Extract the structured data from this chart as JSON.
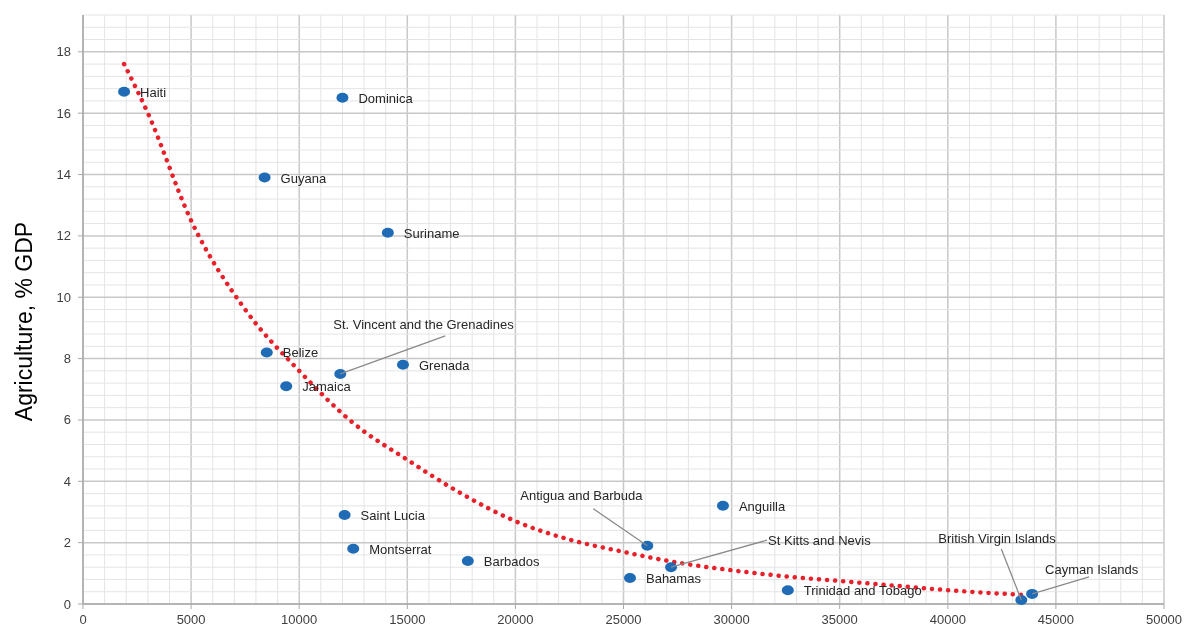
{
  "chart_data": {
    "type": "scatter",
    "ylabel": "Agriculture, % GDP",
    "xlim": [
      0,
      50000
    ],
    "ylim": [
      0,
      19.2
    ],
    "xticks": [
      0,
      {
        "value": 1000,
        "label": null
      },
      {
        "value": 2000,
        "label": null
      },
      {
        "value": 3000,
        "label": null
      },
      {
        "value": 4000,
        "label": null
      },
      5000,
      {
        "value": 6000,
        "label": null
      },
      {
        "value": 7000,
        "label": null
      },
      {
        "value": 8000,
        "label": null
      },
      {
        "value": 9000,
        "label": null
      },
      10000,
      {
        "value": 11000,
        "label": null
      },
      {
        "value": 12000,
        "label": null
      },
      {
        "value": 13000,
        "label": null
      },
      {
        "value": 14000,
        "label": null
      },
      15000,
      {
        "value": 16000,
        "label": null
      },
      {
        "value": 17000,
        "label": null
      },
      {
        "value": 18000,
        "label": null
      },
      {
        "value": 19000,
        "label": null
      },
      20000,
      {
        "value": 21000,
        "label": null
      },
      {
        "value": 22000,
        "label": null
      },
      {
        "value": 23000,
        "label": null
      },
      {
        "value": 24000,
        "label": null
      },
      25000,
      {
        "value": 26000,
        "label": null
      },
      {
        "value": 27000,
        "label": null
      },
      {
        "value": 28000,
        "label": null
      },
      {
        "value": 29000,
        "label": null
      },
      30000,
      {
        "value": 31000,
        "label": null
      },
      {
        "value": 32000,
        "label": null
      },
      {
        "value": 33000,
        "label": null
      },
      {
        "value": 34000,
        "label": null
      },
      35000,
      {
        "value": 36000,
        "label": null
      },
      {
        "value": 37000,
        "label": null
      },
      {
        "value": 38000,
        "label": null
      },
      {
        "value": 39000,
        "label": null
      },
      40000,
      {
        "value": 41000,
        "label": null
      },
      {
        "value": 42000,
        "label": null
      },
      {
        "value": 43000,
        "label": null
      },
      {
        "value": 44000,
        "label": null
      },
      45000,
      {
        "value": 46000,
        "label": null
      },
      {
        "value": 47000,
        "label": null
      },
      {
        "value": 48000,
        "label": null
      },
      {
        "value": 49000,
        "label": null
      },
      50000
    ],
    "yticks": [
      0,
      {
        "value": 0.4,
        "label": null
      },
      {
        "value": 0.8,
        "label": null
      },
      {
        "value": 1.2,
        "label": null
      },
      {
        "value": 1.6,
        "label": null
      },
      2,
      {
        "value": 2.4,
        "label": null
      },
      {
        "value": 2.8,
        "label": null
      },
      {
        "value": 3.2,
        "label": null
      },
      {
        "value": 3.6,
        "label": null
      },
      4,
      {
        "value": 4.4,
        "label": null
      },
      {
        "value": 4.8,
        "label": null
      },
      {
        "value": 5.2,
        "label": null
      },
      {
        "value": 5.6,
        "label": null
      },
      6,
      {
        "value": 6.4,
        "label": null
      },
      {
        "value": 6.8,
        "label": null
      },
      {
        "value": 7.2,
        "label": null
      },
      {
        "value": 7.6,
        "label": null
      },
      8,
      {
        "value": 8.4,
        "label": null
      },
      {
        "value": 8.8,
        "label": null
      },
      {
        "value": 9.2,
        "label": null
      },
      {
        "value": 9.6,
        "label": null
      },
      10,
      {
        "value": 10.4,
        "label": null
      },
      {
        "value": 10.8,
        "label": null
      },
      {
        "value": 11.2,
        "label": null
      },
      {
        "value": 11.6,
        "label": null
      },
      12,
      {
        "value": 12.4,
        "label": null
      },
      {
        "value": 12.8,
        "label": null
      },
      {
        "value": 13.2,
        "label": null
      },
      {
        "value": 13.6,
        "label": null
      },
      14,
      {
        "value": 14.4,
        "label": null
      },
      {
        "value": 14.8,
        "label": null
      },
      {
        "value": 15.2,
        "label": null
      },
      {
        "value": 15.6,
        "label": null
      },
      16,
      {
        "value": 16.4,
        "label": null
      },
      {
        "value": 16.8,
        "label": null
      },
      {
        "value": 17.2,
        "label": null
      },
      {
        "value": 17.6,
        "label": null
      },
      18,
      {
        "value": 18.4,
        "label": null
      },
      {
        "value": 18.8,
        "label": null
      },
      {
        "value": 19.2,
        "label": null
      }
    ],
    "grid": true,
    "series": [
      {
        "type": "scatter",
        "color": "#1f6bb5",
        "marker": "circle",
        "x": [
          1900,
          12000,
          8400,
          14100,
          8500,
          11900,
          14800,
          9400,
          12100,
          12500,
          17800,
          26100,
          29600,
          27200,
          25300,
          32600,
          43400,
          43900
        ],
        "values": [
          16.7,
          16.5,
          13.9,
          12.1,
          8.2,
          7.5,
          7.8,
          7.1,
          2.9,
          1.8,
          1.4,
          1.9,
          3.2,
          1.2,
          0.85,
          0.45,
          0.13,
          0.33
        ]
      },
      {
        "type": "line",
        "color": "#e8202a",
        "line_style": "dotted",
        "x": [
          1900,
          3000,
          5000,
          7500,
          10000,
          12500,
          15000,
          17500,
          20000,
          22500,
          25000,
          27500,
          30000,
          32500,
          35000,
          37500,
          40000,
          43400
        ],
        "values": [
          17.6,
          16.0,
          12.5,
          9.6,
          7.6,
          5.9,
          4.7,
          3.6,
          2.7,
          2.1,
          1.7,
          1.35,
          1.1,
          0.9,
          0.75,
          0.6,
          0.45,
          0.3
        ]
      }
    ],
    "annotations": [
      {
        "text": "Haiti",
        "x": 1900,
        "y": 16.7
      },
      {
        "text": "Dominica",
        "x": 12000,
        "y": 16.5
      },
      {
        "text": "Guyana",
        "x": 8400,
        "y": 13.9
      },
      {
        "text": "Suriname",
        "x": 14100,
        "y": 12.1
      },
      {
        "text": "Belize",
        "x": 8500,
        "y": 8.2
      },
      {
        "text": "St. Vincent and the Grenadines",
        "x": 11900,
        "y": 7.5
      },
      {
        "text": "Grenada",
        "x": 14800,
        "y": 7.8
      },
      {
        "text": "Jamaica",
        "x": 9400,
        "y": 7.1
      },
      {
        "text": "Saint Lucia",
        "x": 12100,
        "y": 2.9
      },
      {
        "text": "Montserrat",
        "x": 12500,
        "y": 1.8
      },
      {
        "text": "Barbados",
        "x": 17800,
        "y": 1.4
      },
      {
        "text": "Antigua and Barbuda",
        "x": 26100,
        "y": 1.9
      },
      {
        "text": "Anguilla",
        "x": 29600,
        "y": 3.2
      },
      {
        "text": "St Kitts and Nevis",
        "x": 27200,
        "y": 1.2
      },
      {
        "text": "Bahamas",
        "x": 25300,
        "y": 0.85
      },
      {
        "text": "Trinidad and Tobago",
        "x": 32600,
        "y": 0.45
      },
      {
        "text": "British Virgin Islands",
        "x": 43400,
        "y": 0.13
      },
      {
        "text": "Cayman Islands",
        "x": 43900,
        "y": 0.33
      }
    ]
  }
}
